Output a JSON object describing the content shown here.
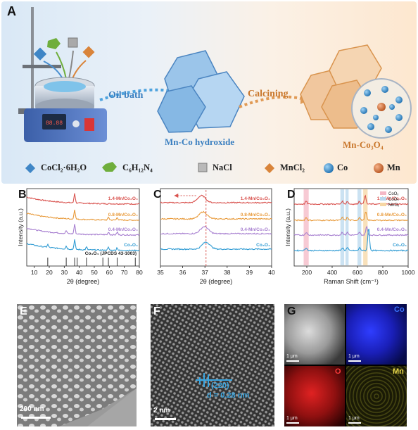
{
  "panels": {
    "a": "A",
    "b": "B",
    "c": "C",
    "d": "D",
    "e": "E",
    "f": "F",
    "g": "G"
  },
  "scheme": {
    "step1": "Oil bath",
    "step2": "Calcining",
    "product1": "Mn-Co hydroxide",
    "product2": "Mn-Co₃O₄",
    "hotplate_display": "88.88",
    "legend": [
      {
        "label": "CoCl₂·6H₂O",
        "icon": "blue-diamond-icon",
        "color": "#3f86c6"
      },
      {
        "label": "C₆H₁₂N₄",
        "icon": "green-hexagon-icon",
        "color": "#6fae3c"
      },
      {
        "label": "NaCl",
        "icon": "gray-cube-icon",
        "color": "#9a9a9a"
      },
      {
        "label": "MnCl₂",
        "icon": "orange-diamond-icon",
        "color": "#d9843a"
      },
      {
        "label": "Co",
        "icon": "blue-sphere-icon",
        "color": "#2a86c8"
      },
      {
        "label": "Mn",
        "icon": "orange-sphere-icon",
        "color": "#d2692b"
      }
    ]
  },
  "colors": {
    "s14": "#d9534f",
    "s08": "#e89a3a",
    "s04": "#a77fd0",
    "s0": "#2f9bd3"
  },
  "chart_data": [
    {
      "type": "line",
      "xlabel": "2θ (degree)",
      "ylabel": "Intensity (a.u.)",
      "xlim": [
        5,
        80
      ],
      "xticks": [
        10,
        20,
        30,
        40,
        50,
        60,
        70,
        80
      ],
      "series": [
        {
          "name": "1.4-Mn/Co₃O₄",
          "peaks": [
            36.9
          ]
        },
        {
          "name": "0.8-Mn/Co₃O₄",
          "peaks": [
            36.9,
            59.5,
            65.3
          ]
        },
        {
          "name": "0.4-Mn/Co₃O₄",
          "peaks": [
            31.3,
            36.9,
            59.5,
            65.3
          ]
        },
        {
          "name": "Co₃O₄",
          "peaks": [
            19.0,
            31.3,
            36.9,
            44.8,
            59.4,
            65.2
          ]
        }
      ],
      "reference": {
        "name": "Co₃O₄ (JPCDS 43-1003)",
        "positions": [
          19.0,
          31.3,
          36.9,
          38.6,
          44.8,
          55.7,
          59.4,
          65.2,
          77.3
        ]
      }
    },
    {
      "type": "line",
      "xlabel": "2θ (degree)",
      "xlim": [
        35,
        40
      ],
      "xticks": [
        35,
        36,
        37,
        38,
        39,
        40
      ],
      "reference_line": 37.05,
      "series": [
        {
          "name": "1.4-Mn/Co₃O₄",
          "peak": 36.85
        },
        {
          "name": "0.8-Mn/Co₃O₄",
          "peak": 36.92
        },
        {
          "name": "0.4-Mn/Co₃O₄",
          "peak": 36.98
        },
        {
          "name": "Co₃O₄",
          "peak": 37.05
        }
      ]
    },
    {
      "type": "line",
      "xlabel": "Raman Shift (cm⁻¹)",
      "ylabel": "Intensity (a.u.)",
      "xlim": [
        100,
        1000
      ],
      "xticks": [
        200,
        400,
        600,
        800,
        1000
      ],
      "legend": [
        {
          "label": "CoOₓ",
          "color": "#f4b8c6"
        },
        {
          "label": "CoOₕ",
          "color": "#b9d8ee"
        },
        {
          "label": "MnOₓ",
          "color": "#f6d7a4"
        }
      ],
      "bands": [
        {
          "from": 175,
          "to": 215,
          "color": "#f4b8c6"
        },
        {
          "from": 465,
          "to": 495,
          "color": "#b9d8ee"
        },
        {
          "from": 505,
          "to": 530,
          "color": "#b9d8ee"
        },
        {
          "from": 600,
          "to": 630,
          "color": "#b9d8ee"
        },
        {
          "from": 645,
          "to": 680,
          "color": "#f6d7a4"
        }
      ],
      "series": [
        {
          "name": "1.4-Mn/Co₃O₄",
          "peaks": [
            195,
            480,
            520,
            615,
            660
          ]
        },
        {
          "name": "0.8-Mn/Co₃O₄",
          "peaks": [
            195,
            480,
            520,
            615,
            665
          ]
        },
        {
          "name": "0.4-Mn/Co₃O₄",
          "peaks": [
            195,
            480,
            520,
            615,
            672
          ]
        },
        {
          "name": "Co₃O₄",
          "peaks": [
            194,
            482,
            520,
            618,
            688
          ]
        }
      ]
    }
  ],
  "micro": {
    "e_scale": "200 nm",
    "f_scale": "2 nm",
    "f_plane": "(220)",
    "f_d": "d = 0.28 nm",
    "g_scale": "1 μm",
    "g_co": "Co",
    "g_o": "O",
    "g_mn": "Mn"
  }
}
